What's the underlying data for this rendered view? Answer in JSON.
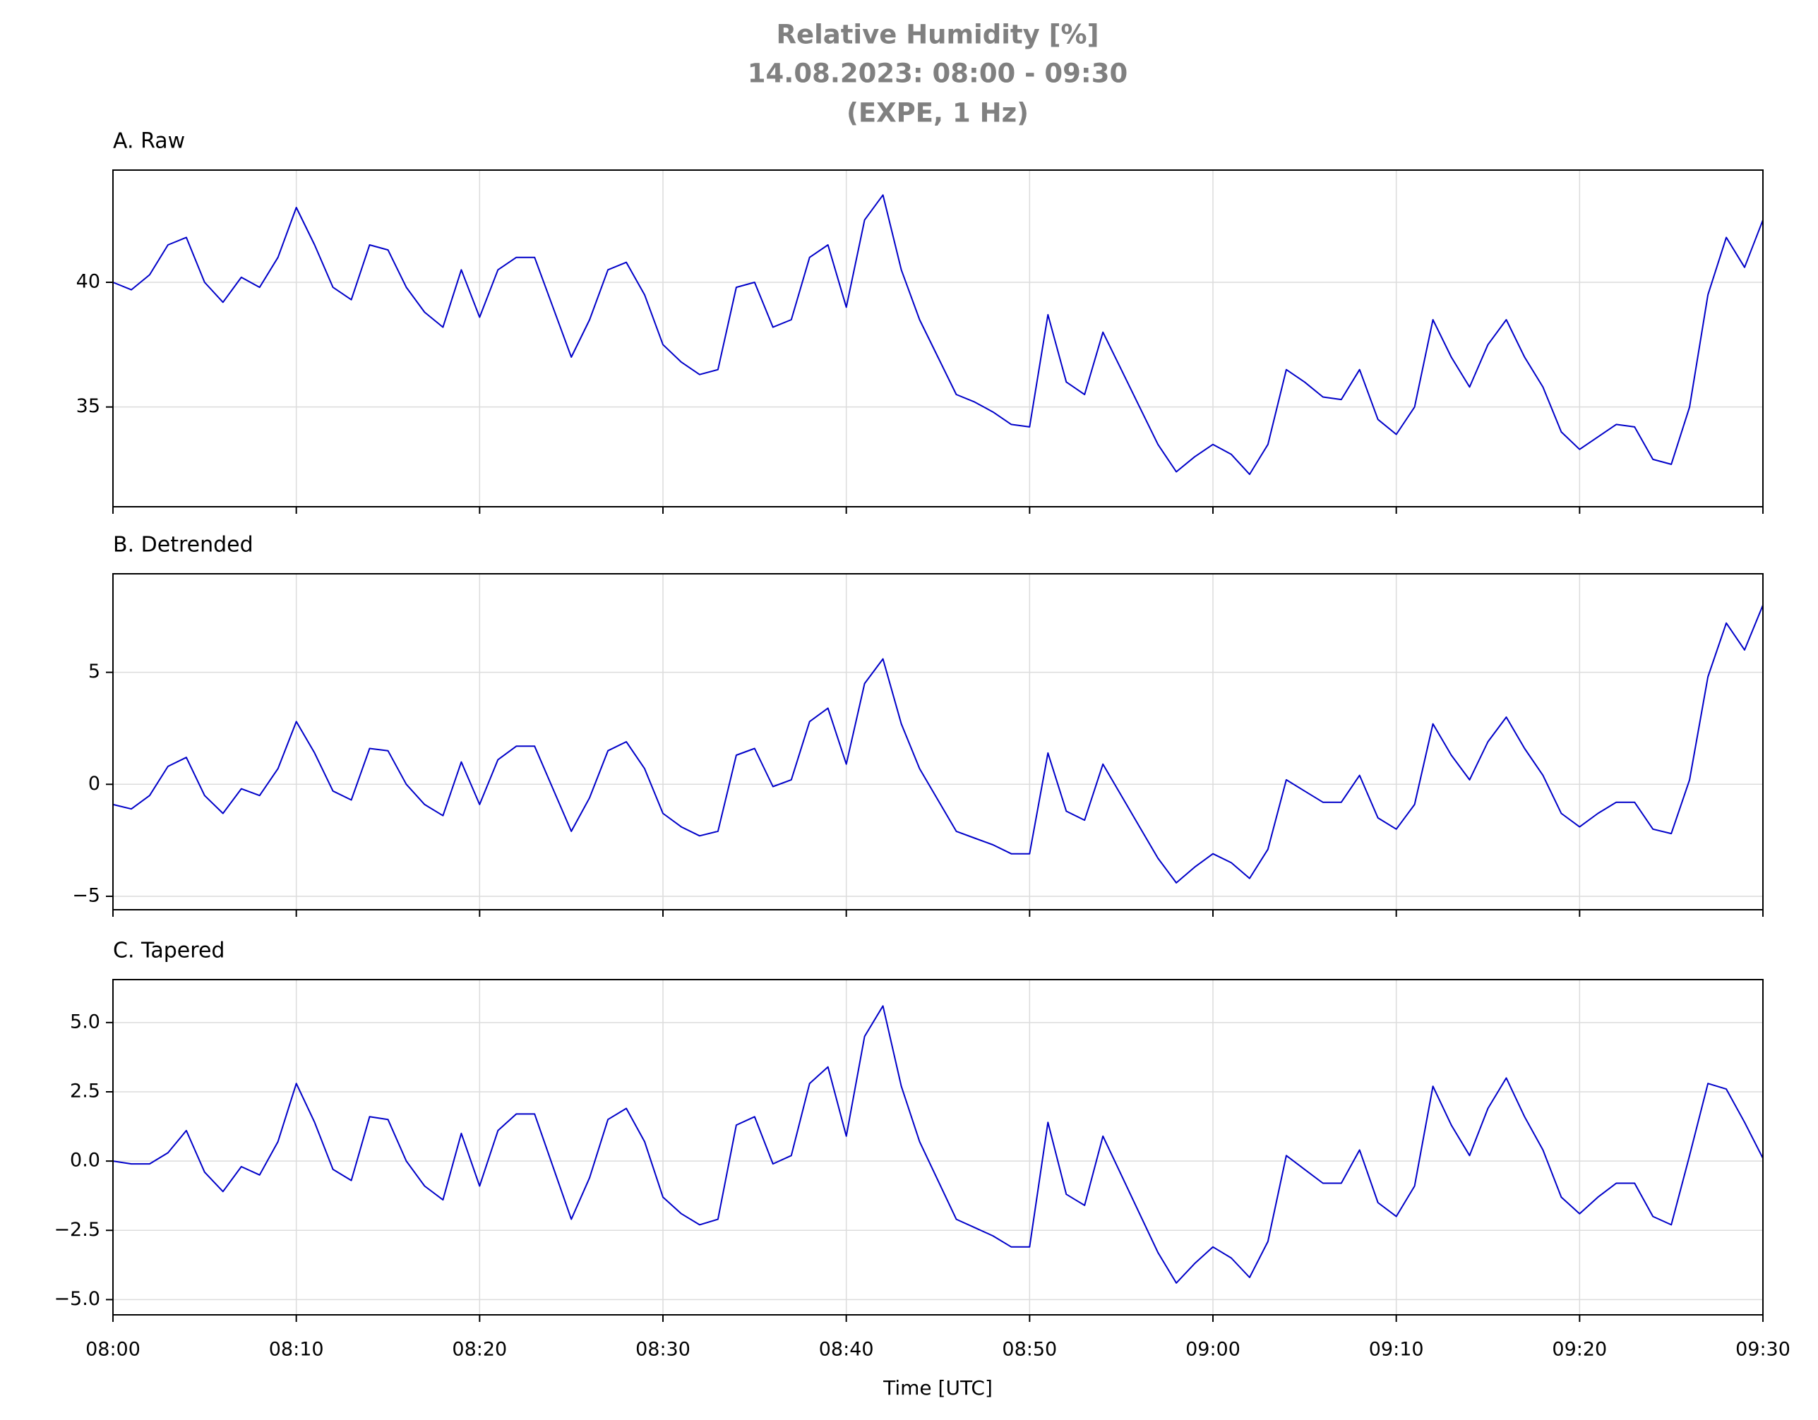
{
  "figure": {
    "title_lines": [
      "Relative Humidity [%]",
      "14.08.2023:  08:00 -  09:30",
      "(EXPE, 1 Hz)"
    ]
  },
  "chart_data": [
    {
      "type": "line",
      "title": "A. Raw",
      "color": "#0000c8",
      "grid": true,
      "xlim": [
        "08:00",
        "09:30"
      ],
      "xticks": [
        "08:00",
        "08:10",
        "08:20",
        "08:30",
        "08:40",
        "08:50",
        "09:00",
        "09:10",
        "09:20",
        "09:30"
      ],
      "ylim": [
        31,
        44.5
      ],
      "yticks": [
        35,
        40
      ],
      "x": [
        "08:00",
        "08:01",
        "08:02",
        "08:03",
        "08:04",
        "08:05",
        "08:06",
        "08:07",
        "08:08",
        "08:09",
        "08:10",
        "08:11",
        "08:12",
        "08:13",
        "08:14",
        "08:15",
        "08:16",
        "08:17",
        "08:18",
        "08:19",
        "08:20",
        "08:21",
        "08:22",
        "08:23",
        "08:24",
        "08:25",
        "08:26",
        "08:27",
        "08:28",
        "08:29",
        "08:30",
        "08:31",
        "08:32",
        "08:33",
        "08:34",
        "08:35",
        "08:36",
        "08:37",
        "08:38",
        "08:39",
        "08:40",
        "08:41",
        "08:42",
        "08:43",
        "08:44",
        "08:45",
        "08:46",
        "08:47",
        "08:48",
        "08:49",
        "08:50",
        "08:51",
        "08:52",
        "08:53",
        "08:54",
        "08:55",
        "08:56",
        "08:57",
        "08:58",
        "08:59",
        "09:00",
        "09:01",
        "09:02",
        "09:03",
        "09:04",
        "09:05",
        "09:06",
        "09:07",
        "09:08",
        "09:09",
        "09:10",
        "09:11",
        "09:12",
        "09:13",
        "09:14",
        "09:15",
        "09:16",
        "09:17",
        "09:18",
        "09:19",
        "09:20",
        "09:21",
        "09:22",
        "09:23",
        "09:24",
        "09:25",
        "09:26",
        "09:27",
        "09:28",
        "09:29",
        "09:30"
      ],
      "values": [
        40.0,
        39.7,
        40.3,
        41.5,
        41.8,
        40.0,
        39.2,
        40.2,
        39.8,
        41.0,
        43.0,
        41.5,
        39.8,
        39.3,
        41.5,
        41.3,
        39.8,
        38.8,
        38.2,
        40.5,
        38.6,
        40.5,
        41.0,
        41.0,
        39.0,
        37.0,
        38.5,
        40.5,
        40.8,
        39.5,
        37.5,
        36.8,
        36.3,
        36.5,
        39.8,
        40.0,
        38.2,
        38.5,
        41.0,
        41.5,
        39.0,
        42.5,
        43.5,
        40.5,
        38.5,
        37.0,
        35.5,
        35.2,
        34.8,
        34.3,
        34.2,
        38.7,
        36.0,
        35.5,
        38.0,
        36.5,
        35.0,
        33.5,
        32.4,
        33.0,
        33.5,
        33.1,
        32.3,
        33.5,
        36.5,
        36.0,
        35.4,
        35.3,
        36.5,
        34.5,
        33.9,
        35.0,
        38.5,
        37.0,
        35.8,
        37.5,
        38.5,
        37.0,
        35.8,
        34.0,
        33.3,
        33.8,
        34.3,
        34.2,
        32.9,
        32.7,
        35.0,
        39.5,
        41.8,
        40.6,
        42.5
      ]
    },
    {
      "type": "line",
      "title": "B. Detrended",
      "color": "#0000c8",
      "grid": true,
      "xlim": [
        "08:00",
        "09:30"
      ],
      "xticks": [
        "08:00",
        "08:10",
        "08:20",
        "08:30",
        "08:40",
        "08:50",
        "09:00",
        "09:10",
        "09:20",
        "09:30"
      ],
      "ylim": [
        -5.6,
        9.4
      ],
      "yticks": [
        {
          "value": -5,
          "label": "−5"
        },
        0,
        5
      ],
      "x": [
        "08:00",
        "08:01",
        "08:02",
        "08:03",
        "08:04",
        "08:05",
        "08:06",
        "08:07",
        "08:08",
        "08:09",
        "08:10",
        "08:11",
        "08:12",
        "08:13",
        "08:14",
        "08:15",
        "08:16",
        "08:17",
        "08:18",
        "08:19",
        "08:20",
        "08:21",
        "08:22",
        "08:23",
        "08:24",
        "08:25",
        "08:26",
        "08:27",
        "08:28",
        "08:29",
        "08:30",
        "08:31",
        "08:32",
        "08:33",
        "08:34",
        "08:35",
        "08:36",
        "08:37",
        "08:38",
        "08:39",
        "08:40",
        "08:41",
        "08:42",
        "08:43",
        "08:44",
        "08:45",
        "08:46",
        "08:47",
        "08:48",
        "08:49",
        "08:50",
        "08:51",
        "08:52",
        "08:53",
        "08:54",
        "08:55",
        "08:56",
        "08:57",
        "08:58",
        "08:59",
        "09:00",
        "09:01",
        "09:02",
        "09:03",
        "09:04",
        "09:05",
        "09:06",
        "09:07",
        "09:08",
        "09:09",
        "09:10",
        "09:11",
        "09:12",
        "09:13",
        "09:14",
        "09:15",
        "09:16",
        "09:17",
        "09:18",
        "09:19",
        "09:20",
        "09:21",
        "09:22",
        "09:23",
        "09:24",
        "09:25",
        "09:26",
        "09:27",
        "09:28",
        "09:29",
        "09:30"
      ],
      "values": [
        -0.9,
        -1.1,
        -0.5,
        0.8,
        1.2,
        -0.5,
        -1.3,
        -0.2,
        -0.5,
        0.7,
        2.8,
        1.4,
        -0.3,
        -0.7,
        1.6,
        1.5,
        0.0,
        -0.9,
        -1.4,
        1.0,
        -0.9,
        1.1,
        1.7,
        1.7,
        -0.2,
        -2.1,
        -0.6,
        1.5,
        1.9,
        0.7,
        -1.3,
        -1.9,
        -2.3,
        -2.1,
        1.3,
        1.6,
        -0.1,
        0.2,
        2.8,
        3.4,
        0.9,
        4.5,
        5.6,
        2.7,
        0.7,
        -0.7,
        -2.1,
        -2.4,
        -2.7,
        -3.1,
        -3.1,
        1.4,
        -1.2,
        -1.6,
        0.9,
        -0.5,
        -1.9,
        -3.3,
        -4.4,
        -3.7,
        -3.1,
        -3.5,
        -4.2,
        -2.9,
        0.2,
        -0.3,
        -0.8,
        -0.8,
        0.4,
        -1.5,
        -2.0,
        -0.9,
        2.7,
        1.3,
        0.2,
        1.9,
        3.0,
        1.6,
        0.4,
        -1.3,
        -1.9,
        -1.3,
        -0.8,
        -0.8,
        -2.0,
        -2.2,
        0.2,
        4.8,
        7.2,
        6.0,
        8.0
      ]
    },
    {
      "type": "line",
      "title": "C. Tapered",
      "color": "#0000c8",
      "grid": true,
      "xlabel": "Time [UTC]",
      "xlim": [
        "08:00",
        "09:30"
      ],
      "xticks": [
        "08:00",
        "08:10",
        "08:20",
        "08:30",
        "08:40",
        "08:50",
        "09:00",
        "09:10",
        "09:20",
        "09:30"
      ],
      "ylim": [
        -5.55,
        6.55
      ],
      "yticks": [
        {
          "value": -5,
          "label": "−5.0"
        },
        {
          "value": -2.5,
          "label": "−2.5"
        },
        {
          "value": 0,
          "label": "0.0"
        },
        2.5,
        {
          "value": 5,
          "label": "5.0"
        }
      ],
      "x": [
        "08:00",
        "08:01",
        "08:02",
        "08:03",
        "08:04",
        "08:05",
        "08:06",
        "08:07",
        "08:08",
        "08:09",
        "08:10",
        "08:11",
        "08:12",
        "08:13",
        "08:14",
        "08:15",
        "08:16",
        "08:17",
        "08:18",
        "08:19",
        "08:20",
        "08:21",
        "08:22",
        "08:23",
        "08:24",
        "08:25",
        "08:26",
        "08:27",
        "08:28",
        "08:29",
        "08:30",
        "08:31",
        "08:32",
        "08:33",
        "08:34",
        "08:35",
        "08:36",
        "08:37",
        "08:38",
        "08:39",
        "08:40",
        "08:41",
        "08:42",
        "08:43",
        "08:44",
        "08:45",
        "08:46",
        "08:47",
        "08:48",
        "08:49",
        "08:50",
        "08:51",
        "08:52",
        "08:53",
        "08:54",
        "08:55",
        "08:56",
        "08:57",
        "08:58",
        "08:59",
        "09:00",
        "09:01",
        "09:02",
        "09:03",
        "09:04",
        "09:05",
        "09:06",
        "09:07",
        "09:08",
        "09:09",
        "09:10",
        "09:11",
        "09:12",
        "09:13",
        "09:14",
        "09:15",
        "09:16",
        "09:17",
        "09:18",
        "09:19",
        "09:20",
        "09:21",
        "09:22",
        "09:23",
        "09:24",
        "09:25",
        "09:26",
        "09:27",
        "09:28",
        "09:29",
        "09:30"
      ],
      "values": [
        0.0,
        -0.1,
        -0.1,
        0.3,
        1.1,
        -0.4,
        -1.1,
        -0.2,
        -0.5,
        0.7,
        2.8,
        1.4,
        -0.3,
        -0.7,
        1.6,
        1.5,
        0.0,
        -0.9,
        -1.4,
        1.0,
        -0.9,
        1.1,
        1.7,
        1.7,
        -0.2,
        -2.1,
        -0.6,
        1.5,
        1.9,
        0.7,
        -1.3,
        -1.9,
        -2.3,
        -2.1,
        1.3,
        1.6,
        -0.1,
        0.2,
        2.8,
        3.4,
        0.9,
        4.5,
        5.6,
        2.7,
        0.7,
        -0.7,
        -2.1,
        -2.4,
        -2.7,
        -3.1,
        -3.1,
        1.4,
        -1.2,
        -1.6,
        0.9,
        -0.5,
        -1.9,
        -3.3,
        -4.4,
        -3.7,
        -3.1,
        -3.5,
        -4.2,
        -2.9,
        0.2,
        -0.3,
        -0.8,
        -0.8,
        0.4,
        -1.5,
        -2.0,
        -0.9,
        2.7,
        1.3,
        0.2,
        1.9,
        3.0,
        1.6,
        0.4,
        -1.3,
        -1.9,
        -1.3,
        -0.8,
        -0.8,
        -2.0,
        -2.3,
        0.2,
        2.8,
        2.6,
        1.4,
        0.1
      ]
    }
  ]
}
